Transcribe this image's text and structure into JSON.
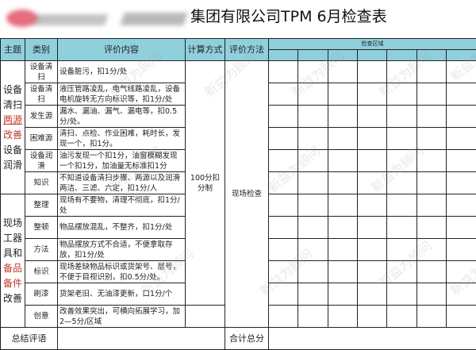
{
  "title": "集团有限公司TPM 6月检查表",
  "watermark": "新益为顾问",
  "headers": {
    "theme": "主题",
    "category": "类别",
    "content": "评价内容",
    "calc": "计算方式",
    "method": "评价方法",
    "area": "检查区域"
  },
  "themes": [
    {
      "parts": [
        {
          "text": "设备清扫",
          "red": false
        },
        {
          "text": "两源",
          "red": true,
          "underline": true
        },
        {
          "text": "改善",
          "red": true
        },
        {
          "text": "设备润滑",
          "red": false
        }
      ]
    },
    {
      "parts": [
        {
          "text": "现场工器具和",
          "red": false
        },
        {
          "text": "备品备件",
          "red": true
        },
        {
          "text": "改善",
          "red": false
        }
      ]
    }
  ],
  "rows": [
    {
      "category": "设备清扫",
      "content": "设备脏污，扣1分/处"
    },
    {
      "category": "设备清扫",
      "content": "液压管路凌乱，电气线路凌乱，设备电机旋转无方向标识等，扣1分/处"
    },
    {
      "category": "发生源",
      "content": "漏水、漏油、漏气、漏电等，扣0.5分/处。"
    },
    {
      "category": "困难源",
      "content": "清扫、点检、作业困难，耗时长，发现一个，扣1分。"
    },
    {
      "category": "设备润滑",
      "content": "油污发现一个扣1分，油窗模糊发现一个扣1分，加油量无标准扣1分"
    },
    {
      "category": "知识",
      "content": "不知道设备清扫步骤、两源以及润滑两洁、三滤、六定，扣1分/人"
    },
    {
      "category": "整理",
      "content": "现场有不要物，清理不彻底，扣1分/处"
    },
    {
      "category": "整顿",
      "content": "物品摆放混乱，不整齐，扣1分/处"
    },
    {
      "category": "方法",
      "content": "物品摆放方式不合适，不便拿取存放，扣1分/处"
    },
    {
      "category": "标识",
      "content": "现场差缺物品标识或货架号、层号，不便于目视识别，扣0.5分/处。"
    },
    {
      "category": "刷漆",
      "content": "货架老旧、无油漆更新，口1分/个"
    },
    {
      "category": "创意",
      "content": "改善效果突出，可横向拓展学习，加2—5分/区域"
    }
  ],
  "calc_method": "100分扣分制",
  "eval_method": "现场检查",
  "summary": {
    "label": "总结评语",
    "total_label": "合计总分"
  },
  "colors": {
    "header_bg": "#90cfdc",
    "accent_red": "#c0392b"
  }
}
